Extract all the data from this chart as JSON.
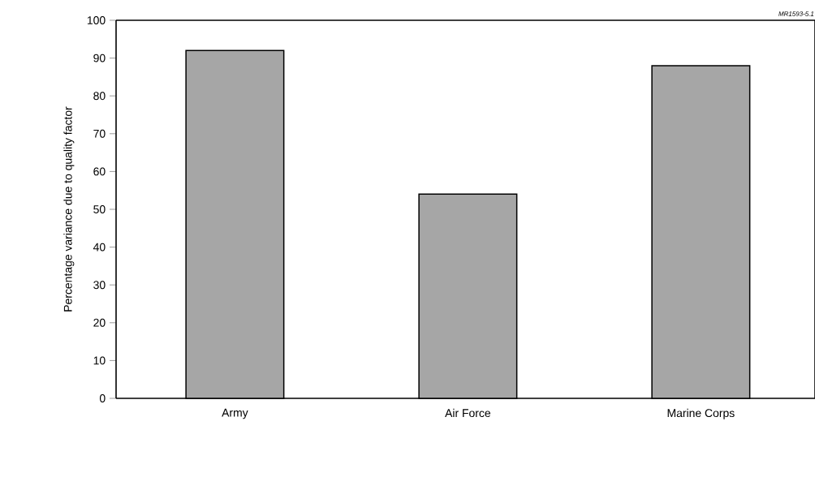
{
  "chart_data": {
    "type": "bar",
    "ylabel": "Percentage variance due to quality factor",
    "categories": [
      "Army",
      "Air Force",
      "Marine Corps"
    ],
    "values": [
      92,
      54,
      88
    ],
    "color": "#a6a6a6",
    "ylim": [
      0,
      100
    ],
    "yticks": [
      0,
      10,
      20,
      30,
      40,
      50,
      60,
      70,
      80,
      90,
      100
    ],
    "annotations": [
      "*MR1593-5.1*"
    ]
  }
}
